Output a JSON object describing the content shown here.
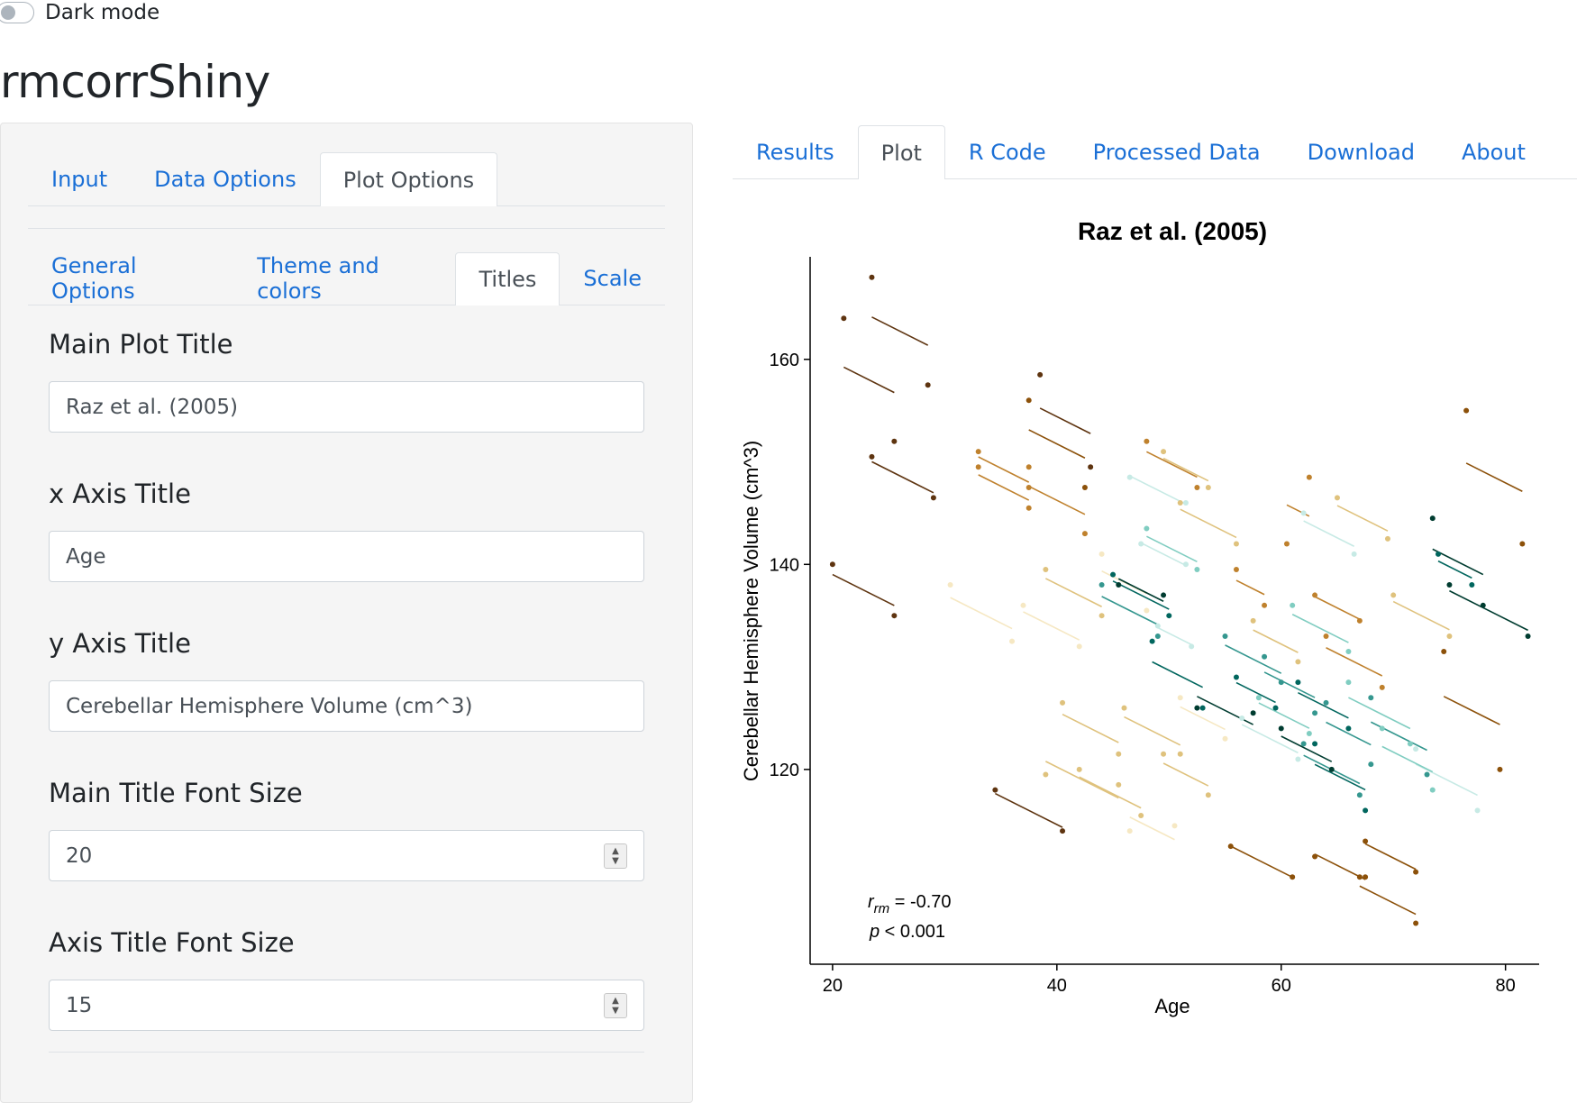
{
  "dark_mode": {
    "label": "Dark mode",
    "on": false
  },
  "app_title": "rmcorrShiny",
  "sidebar": {
    "tabs": [
      {
        "label": "Input",
        "active": false
      },
      {
        "label": "Data Options",
        "active": false
      },
      {
        "label": "Plot Options",
        "active": true
      }
    ],
    "subtabs": [
      {
        "label": "General Options",
        "active": false
      },
      {
        "label": "Theme and colors",
        "active": false
      },
      {
        "label": "Titles",
        "active": true
      },
      {
        "label": "Scale",
        "active": false
      }
    ],
    "fields": {
      "main_title": {
        "label": "Main Plot Title",
        "value": "Raz et al. (2005)"
      },
      "x_title": {
        "label": "x Axis Title",
        "value": "Age"
      },
      "y_title": {
        "label": "y Axis Title",
        "value": "Cerebellar Hemisphere Volume (cm^3)"
      },
      "main_font": {
        "label": "Main Title Font Size",
        "value": "20"
      },
      "axis_font": {
        "label": "Axis Title Font Size",
        "value": "15"
      }
    }
  },
  "main_tabs": [
    {
      "label": "Results",
      "active": false
    },
    {
      "label": "Plot",
      "active": true
    },
    {
      "label": "R Code",
      "active": false
    },
    {
      "label": "Processed Data",
      "active": false
    },
    {
      "label": "Download",
      "active": false
    },
    {
      "label": "About",
      "active": false
    }
  ],
  "chart_data": {
    "type": "scatter",
    "title": "Raz et al. (2005)",
    "xlabel": "Age",
    "ylabel": "Cerebellar Hemisphere Volume (cm^3)",
    "xlim": [
      18,
      83
    ],
    "ylim": [
      101,
      170
    ],
    "xticks": [
      20,
      40,
      60,
      80
    ],
    "yticks": [
      120,
      140,
      160
    ],
    "annotation": {
      "r_label": "r",
      "r_sub": "rm",
      "r_value": " = -0.70",
      "p_label": "p",
      "p_value": " < 0.001"
    },
    "palette": [
      "#5e3410",
      "#8c510a",
      "#bf812d",
      "#dfc27d",
      "#f6e8c3",
      "#c7eae5",
      "#80cdc1",
      "#35978f",
      "#01665e",
      "#003c30"
    ],
    "slope": -0.55,
    "subjects": [
      {
        "color": "#5e3410",
        "points": [
          [
            21,
            164
          ],
          [
            25.5,
            152
          ]
        ]
      },
      {
        "color": "#5e3410",
        "points": [
          [
            23.5,
            168
          ],
          [
            28.5,
            157.5
          ]
        ]
      },
      {
        "color": "#5e3410",
        "points": [
          [
            23.5,
            150.5
          ],
          [
            29,
            146.5
          ]
        ]
      },
      {
        "color": "#5e3410",
        "points": [
          [
            20,
            140
          ],
          [
            25.5,
            135
          ]
        ]
      },
      {
        "color": "#5e3410",
        "points": [
          [
            38.5,
            158.5
          ],
          [
            43,
            149.5
          ]
        ]
      },
      {
        "color": "#5e3410",
        "points": [
          [
            34.5,
            118
          ],
          [
            40.5,
            114
          ]
        ]
      },
      {
        "color": "#8c510a",
        "points": [
          [
            37.5,
            156
          ],
          [
            42.5,
            147.5
          ]
        ]
      },
      {
        "color": "#8c510a",
        "points": [
          [
            55.5,
            112.5
          ],
          [
            61,
            109.5
          ]
        ]
      },
      {
        "color": "#8c510a",
        "points": [
          [
            63,
            111.5
          ],
          [
            67.5,
            109.5
          ]
        ]
      },
      {
        "color": "#8c510a",
        "points": [
          [
            67.5,
            113
          ],
          [
            72,
            110
          ]
        ]
      },
      {
        "color": "#8c510a",
        "points": [
          [
            67,
            109.5
          ],
          [
            72,
            105
          ]
        ]
      },
      {
        "color": "#8c510a",
        "points": [
          [
            76.5,
            155
          ],
          [
            81.5,
            142
          ]
        ]
      },
      {
        "color": "#8c510a",
        "points": [
          [
            74.5,
            131.5
          ],
          [
            79.5,
            120
          ]
        ]
      },
      {
        "color": "#bf812d",
        "points": [
          [
            33,
            151
          ],
          [
            37.5,
            147.5
          ]
        ]
      },
      {
        "color": "#bf812d",
        "points": [
          [
            33,
            149.5
          ],
          [
            37.5,
            145.5
          ]
        ]
      },
      {
        "color": "#bf812d",
        "points": [
          [
            37.5,
            149.5
          ],
          [
            42.5,
            143
          ]
        ]
      },
      {
        "color": "#bf812d",
        "points": [
          [
            48,
            152
          ],
          [
            52.5,
            147.5
          ]
        ]
      },
      {
        "color": "#bf812d",
        "points": [
          [
            62.5,
            148.5
          ],
          [
            60.5,
            142
          ]
        ]
      },
      {
        "color": "#bf812d",
        "points": [
          [
            56,
            139.5
          ],
          [
            58.5,
            136
          ]
        ]
      },
      {
        "color": "#bf812d",
        "points": [
          [
            63,
            137
          ],
          [
            67,
            134.5
          ]
        ]
      },
      {
        "color": "#bf812d",
        "points": [
          [
            64,
            133
          ],
          [
            69,
            128
          ]
        ]
      },
      {
        "color": "#dfc27d",
        "points": [
          [
            49.5,
            151
          ],
          [
            53.5,
            147.5
          ]
        ]
      },
      {
        "color": "#dfc27d",
        "points": [
          [
            51,
            146
          ],
          [
            56,
            142
          ]
        ]
      },
      {
        "color": "#dfc27d",
        "points": [
          [
            39,
            139.5
          ],
          [
            44,
            135
          ]
        ]
      },
      {
        "color": "#dfc27d",
        "points": [
          [
            40.5,
            126.5
          ],
          [
            45.5,
            121.5
          ]
        ]
      },
      {
        "color": "#dfc27d",
        "points": [
          [
            42,
            120
          ],
          [
            47.5,
            115.5
          ]
        ]
      },
      {
        "color": "#dfc27d",
        "points": [
          [
            39,
            119.5
          ],
          [
            45.5,
            118.5
          ]
        ]
      },
      {
        "color": "#dfc27d",
        "points": [
          [
            46,
            126
          ],
          [
            51,
            121.5
          ]
        ]
      },
      {
        "color": "#dfc27d",
        "points": [
          [
            49.5,
            121.5
          ],
          [
            53.5,
            117.5
          ]
        ]
      },
      {
        "color": "#dfc27d",
        "points": [
          [
            57.5,
            134.5
          ],
          [
            61.5,
            130.5
          ]
        ]
      },
      {
        "color": "#dfc27d",
        "points": [
          [
            65,
            146.5
          ],
          [
            69.5,
            142.5
          ]
        ]
      },
      {
        "color": "#dfc27d",
        "points": [
          [
            70,
            137
          ],
          [
            75,
            133
          ]
        ]
      },
      {
        "color": "#f6e8c3",
        "points": [
          [
            30.5,
            138
          ],
          [
            36,
            132.5
          ]
        ]
      },
      {
        "color": "#f6e8c3",
        "points": [
          [
            37,
            136
          ],
          [
            42,
            132
          ]
        ]
      },
      {
        "color": "#f6e8c3",
        "points": [
          [
            44,
            141
          ],
          [
            48,
            135.5
          ]
        ]
      },
      {
        "color": "#f6e8c3",
        "points": [
          [
            46.5,
            114
          ],
          [
            50.5,
            114.5
          ]
        ]
      },
      {
        "color": "#f6e8c3",
        "points": [
          [
            51,
            127
          ],
          [
            55,
            123
          ]
        ]
      },
      {
        "color": "#c7eae5",
        "points": [
          [
            46.5,
            148.5
          ],
          [
            51.5,
            146
          ]
        ]
      },
      {
        "color": "#c7eae5",
        "points": [
          [
            47.5,
            142
          ],
          [
            51.5,
            140
          ]
        ]
      },
      {
        "color": "#c7eae5",
        "points": [
          [
            49,
            134
          ],
          [
            52,
            132
          ]
        ]
      },
      {
        "color": "#c7eae5",
        "points": [
          [
            56.5,
            125
          ],
          [
            61.5,
            121
          ]
        ]
      },
      {
        "color": "#c7eae5",
        "points": [
          [
            62,
            145
          ],
          [
            66.5,
            141
          ]
        ]
      },
      {
        "color": "#c7eae5",
        "points": [
          [
            72,
            122
          ],
          [
            77.5,
            116
          ]
        ]
      },
      {
        "color": "#80cdc1",
        "points": [
          [
            48,
            143.5
          ],
          [
            52.5,
            139.5
          ]
        ]
      },
      {
        "color": "#80cdc1",
        "points": [
          [
            58,
            127
          ],
          [
            62.5,
            123.5
          ]
        ]
      },
      {
        "color": "#80cdc1",
        "points": [
          [
            61,
            136
          ],
          [
            66,
            131.5
          ]
        ]
      },
      {
        "color": "#80cdc1",
        "points": [
          [
            66,
            128.5
          ],
          [
            71.5,
            122.5
          ]
        ]
      },
      {
        "color": "#80cdc1",
        "points": [
          [
            69,
            124
          ],
          [
            73.5,
            118
          ]
        ]
      },
      {
        "color": "#35978f",
        "points": [
          [
            44,
            138
          ],
          [
            49,
            133
          ]
        ]
      },
      {
        "color": "#35978f",
        "points": [
          [
            55,
            133
          ],
          [
            60,
            128.5
          ]
        ]
      },
      {
        "color": "#35978f",
        "points": [
          [
            58.5,
            131
          ],
          [
            63,
            125.5
          ]
        ]
      },
      {
        "color": "#35978f",
        "points": [
          [
            62,
            122.5
          ],
          [
            67,
            117.5
          ]
        ]
      },
      {
        "color": "#35978f",
        "points": [
          [
            64,
            126.5
          ],
          [
            68,
            120.5
          ]
        ]
      },
      {
        "color": "#35978f",
        "points": [
          [
            68,
            127
          ],
          [
            73,
            119.5
          ]
        ]
      },
      {
        "color": "#01665e",
        "points": [
          [
            45,
            139
          ],
          [
            50,
            135
          ]
        ]
      },
      {
        "color": "#01665e",
        "points": [
          [
            48.5,
            132.5
          ],
          [
            53,
            126
          ]
        ]
      },
      {
        "color": "#01665e",
        "points": [
          [
            56,
            129
          ],
          [
            59.5,
            126
          ]
        ]
      },
      {
        "color": "#01665e",
        "points": [
          [
            61.5,
            128.5
          ],
          [
            66,
            124
          ]
        ]
      },
      {
        "color": "#01665e",
        "points": [
          [
            63,
            122.5
          ],
          [
            67.5,
            116
          ]
        ]
      },
      {
        "color": "#01665e",
        "points": [
          [
            74,
            141
          ],
          [
            77,
            138
          ]
        ]
      },
      {
        "color": "#003c30",
        "points": [
          [
            45.5,
            138
          ],
          [
            49.5,
            137
          ]
        ]
      },
      {
        "color": "#003c30",
        "points": [
          [
            52.5,
            126
          ],
          [
            57.5,
            125.5
          ]
        ]
      },
      {
        "color": "#003c30",
        "points": [
          [
            60,
            124
          ],
          [
            64.5,
            120
          ]
        ]
      },
      {
        "color": "#003c30",
        "points": [
          [
            73.5,
            144.5
          ],
          [
            78,
            136
          ]
        ]
      },
      {
        "color": "#003c30",
        "points": [
          [
            75,
            138
          ],
          [
            82,
            133
          ]
        ]
      }
    ]
  }
}
